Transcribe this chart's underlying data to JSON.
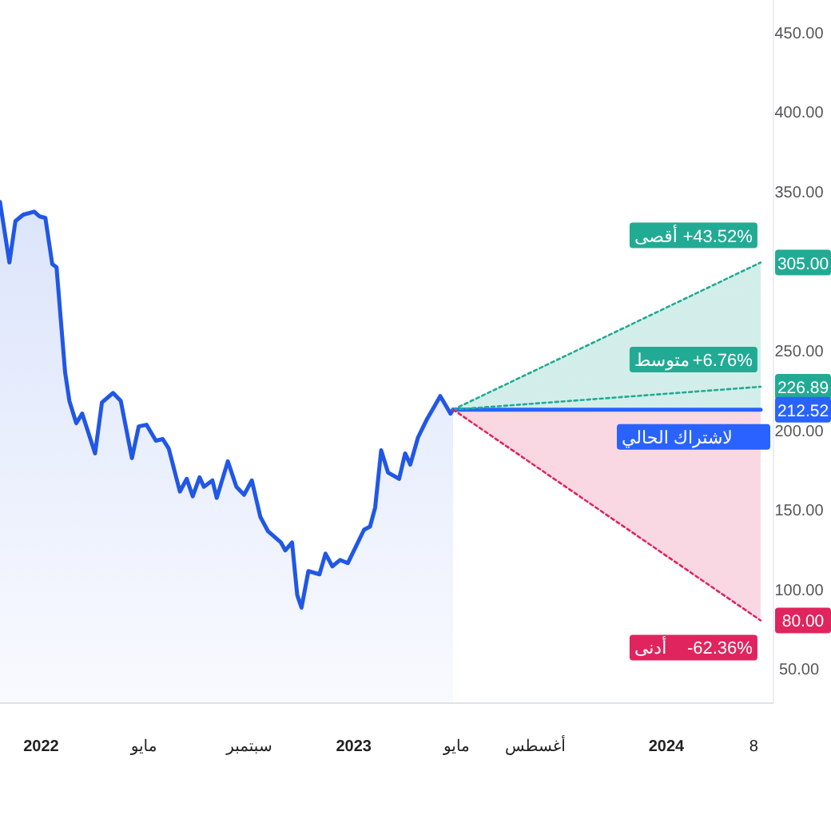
{
  "chart_data": {
    "type": "line",
    "xlim": [
      "2021-11-14",
      "2024-05-05"
    ],
    "xticks": [
      {
        "value": "2022-01-01",
        "label": "2022"
      },
      {
        "value": "2022-05-01",
        "label": "مايو"
      },
      {
        "value": "2022-09-01",
        "label": "سبتمبر"
      },
      {
        "value": "2023-01-01",
        "label": "2023"
      },
      {
        "value": "2023-05-01",
        "label": "مايو"
      },
      {
        "value": "2023-08-01",
        "label": "أغسطس"
      },
      {
        "value": "2024-01-01",
        "label": "2024"
      },
      {
        "value": "2024-04-12",
        "label": "8"
      }
    ],
    "ylim": [
      28,
      470
    ],
    "yticks": [
      {
        "value": 450,
        "label": "450.00"
      },
      {
        "value": 400,
        "label": "400.00"
      },
      {
        "value": 350,
        "label": "350.00"
      },
      {
        "value": 305,
        "label": "305.00"
      },
      {
        "value": 250,
        "label": "250.00"
      },
      226.89,
      212.52,
      {
        "value": 200,
        "label": "200.00"
      },
      {
        "value": 150,
        "label": "150.00"
      },
      {
        "value": 100,
        "label": "100.00"
      },
      {
        "value": 80,
        "label": "80.00"
      },
      {
        "value": 50,
        "label": "50.00"
      }
    ],
    "series": [
      {
        "type": "area",
        "color": "#2157e6",
        "x": [
          "2021-11-14",
          "2021-11-25",
          "2021-12-02",
          "2021-12-11",
          "2021-12-24",
          "2021-12-30",
          "2022-01-06",
          "2022-01-14",
          "2022-01-19",
          "2022-01-29",
          "2022-02-03",
          "2022-02-11",
          "2022-02-18",
          "2022-03-05",
          "2022-03-13",
          "2022-03-26",
          "2022-04-04",
          "2022-04-17",
          "2022-04-25",
          "2022-05-04",
          "2022-05-15",
          "2022-05-23",
          "2022-05-30",
          "2022-06-12",
          "2022-06-20",
          "2022-06-27",
          "2022-07-05",
          "2022-07-10",
          "2022-07-20",
          "2022-07-25",
          "2022-08-07",
          "2022-08-17",
          "2022-08-26",
          "2022-09-04",
          "2022-09-14",
          "2022-09-23",
          "2022-10-08",
          "2022-10-13",
          "2022-10-21",
          "2022-10-27",
          "2022-11-01",
          "2022-11-09",
          "2022-11-22",
          "2022-11-29",
          "2022-12-07",
          "2022-12-16",
          "2022-12-25",
          "2023-01-04",
          "2023-01-13",
          "2023-01-20",
          "2023-01-26",
          "2023-02-02",
          "2023-02-10",
          "2023-02-23",
          "2023-03-02",
          "2023-03-08",
          "2023-03-17",
          "2023-03-27",
          "2023-04-12",
          "2023-04-24",
          "2023-04-27"
        ],
        "values": [
          343,
          305,
          331,
          335,
          337,
          334,
          333,
          304,
          302,
          236,
          218,
          204,
          210,
          185,
          217,
          223,
          218,
          182,
          202,
          203,
          193,
          194,
          188,
          161,
          169,
          158,
          170,
          164,
          168,
          157,
          180,
          164,
          159,
          168,
          145,
          136,
          129,
          124,
          129,
          96,
          88,
          111,
          109,
          122,
          114,
          118,
          116,
          127,
          137,
          139,
          151,
          187,
          173,
          169,
          185,
          178,
          195,
          206,
          221,
          210,
          212.52
        ]
      },
      {
        "name": "لاشتراك الحالي",
        "color": "#2962ff",
        "line_style": "solid",
        "x": [
          "2023-04-27",
          "2024-04-20"
        ],
        "values": [
          212.52,
          212.52
        ],
        "lower": [
          212.52,
          80
        ],
        "upper": [
          212.52,
          305
        ]
      },
      {
        "name": "أقصى",
        "color": "#22ab94",
        "line_style": "dotted",
        "x": [
          "2023-04-27",
          "2024-04-20"
        ],
        "values": [
          212.52,
          305
        ]
      },
      {
        "name": "متوسط",
        "color": "#22ab94",
        "line_style": "dotted",
        "x": [
          "2023-04-27",
          "2024-04-20"
        ],
        "values": [
          212.52,
          226.89
        ]
      },
      {
        "name": "أدنى",
        "color": "#e0245e",
        "line_style": "dotted",
        "x": [
          "2023-04-27",
          "2024-04-20"
        ],
        "values": [
          212.52,
          80
        ]
      }
    ],
    "annotations": [
      {
        "text": "+43.52%",
        "x": "2024-04-20",
        "y": 305
      },
      {
        "text": "+6.76%",
        "x": "2024-04-20",
        "y": 226.89
      },
      {
        "text": "-62.36%",
        "x": "2024-04-20",
        "y": 80
      }
    ]
  }
}
